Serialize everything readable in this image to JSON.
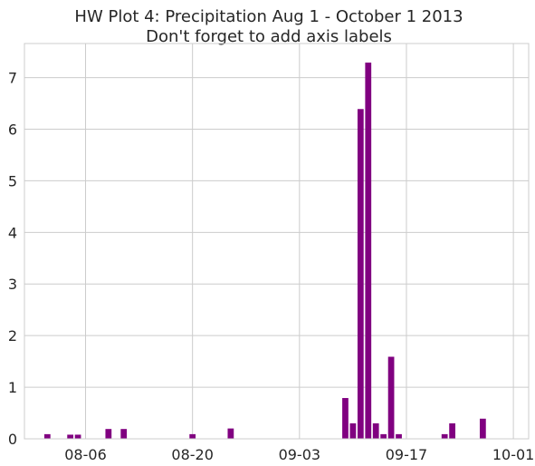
{
  "chart_data": {
    "type": "bar",
    "title": [
      "HW Plot 4: Precipitation Aug 1 - October 1 2013",
      "Don't forget to add axis labels"
    ],
    "xlabel": "",
    "ylabel": "",
    "x_range": [
      "2013-07-29",
      "2013-10-03"
    ],
    "ylim": [
      0,
      7.66
    ],
    "x_ticks": [
      {
        "date": "2013-08-06",
        "label": "08-06"
      },
      {
        "date": "2013-08-20",
        "label": "08-20"
      },
      {
        "date": "2013-09-03",
        "label": "09-03"
      },
      {
        "date": "2013-09-17",
        "label": "09-17"
      },
      {
        "date": "2013-10-01",
        "label": "10-01"
      }
    ],
    "y_ticks": [
      0,
      1,
      2,
      3,
      4,
      5,
      6,
      7
    ],
    "grid": true,
    "bar_color": "#800080",
    "bars": [
      {
        "date": "2013-08-01",
        "value": 0.09
      },
      {
        "date": "2013-08-04",
        "value": 0.08
      },
      {
        "date": "2013-08-05",
        "value": 0.08
      },
      {
        "date": "2013-08-09",
        "value": 0.19
      },
      {
        "date": "2013-08-11",
        "value": 0.19
      },
      {
        "date": "2013-08-20",
        "value": 0.09
      },
      {
        "date": "2013-08-25",
        "value": 0.2
      },
      {
        "date": "2013-09-09",
        "value": 0.79
      },
      {
        "date": "2013-09-10",
        "value": 0.3
      },
      {
        "date": "2013-09-11",
        "value": 6.39
      },
      {
        "date": "2013-09-12",
        "value": 7.29
      },
      {
        "date": "2013-09-13",
        "value": 0.3
      },
      {
        "date": "2013-09-14",
        "value": 0.09
      },
      {
        "date": "2013-09-15",
        "value": 1.59
      },
      {
        "date": "2013-09-16",
        "value": 0.09
      },
      {
        "date": "2013-09-22",
        "value": 0.09
      },
      {
        "date": "2013-09-23",
        "value": 0.3
      },
      {
        "date": "2013-09-27",
        "value": 0.39
      }
    ]
  }
}
